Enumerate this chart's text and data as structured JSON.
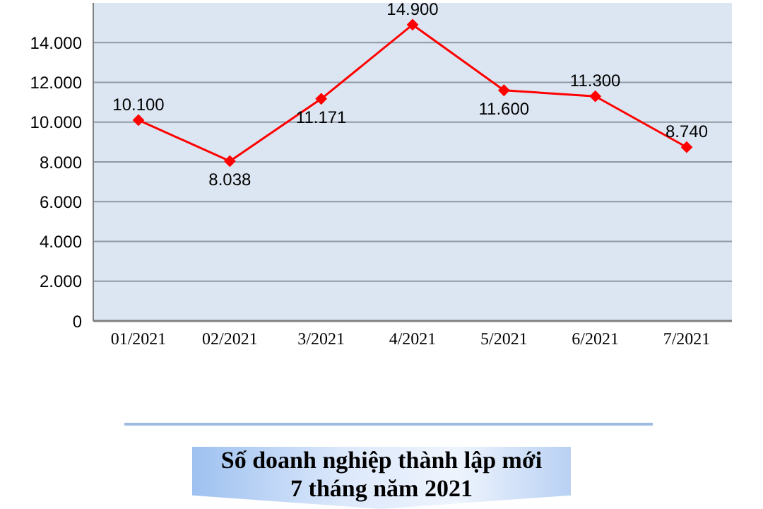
{
  "chart_data": {
    "type": "line",
    "title": "Số doanh nghiệp thành lập mới\n7 tháng năm 2021",
    "categories": [
      "01/2021",
      "02/2021",
      "3/2021",
      "4/2021",
      "5/2021",
      "6/2021",
      "7/2021"
    ],
    "series": [
      {
        "color": "#ff0000",
        "values": [
          10100,
          8038,
          11171,
          14900,
          11600,
          11300,
          8740
        ],
        "value_labels": [
          "10.100",
          "8.038",
          "11.171",
          "14.900",
          "11.600",
          "11.300",
          "8.740"
        ]
      }
    ],
    "ylim": [
      0,
      16000
    ],
    "yticks": [
      0,
      {
        "value": 2000,
        "label": "2.000"
      },
      {
        "value": 4000,
        "label": "4.000"
      },
      {
        "value": 6000,
        "label": "6.000"
      },
      {
        "value": 8000,
        "label": "8.000"
      },
      {
        "value": 10000,
        "label": "10.000"
      },
      {
        "value": 12000,
        "label": "12.000"
      },
      {
        "value": 14000,
        "label": "14.000"
      }
    ],
    "grid": "y",
    "marker": "diamond"
  }
}
